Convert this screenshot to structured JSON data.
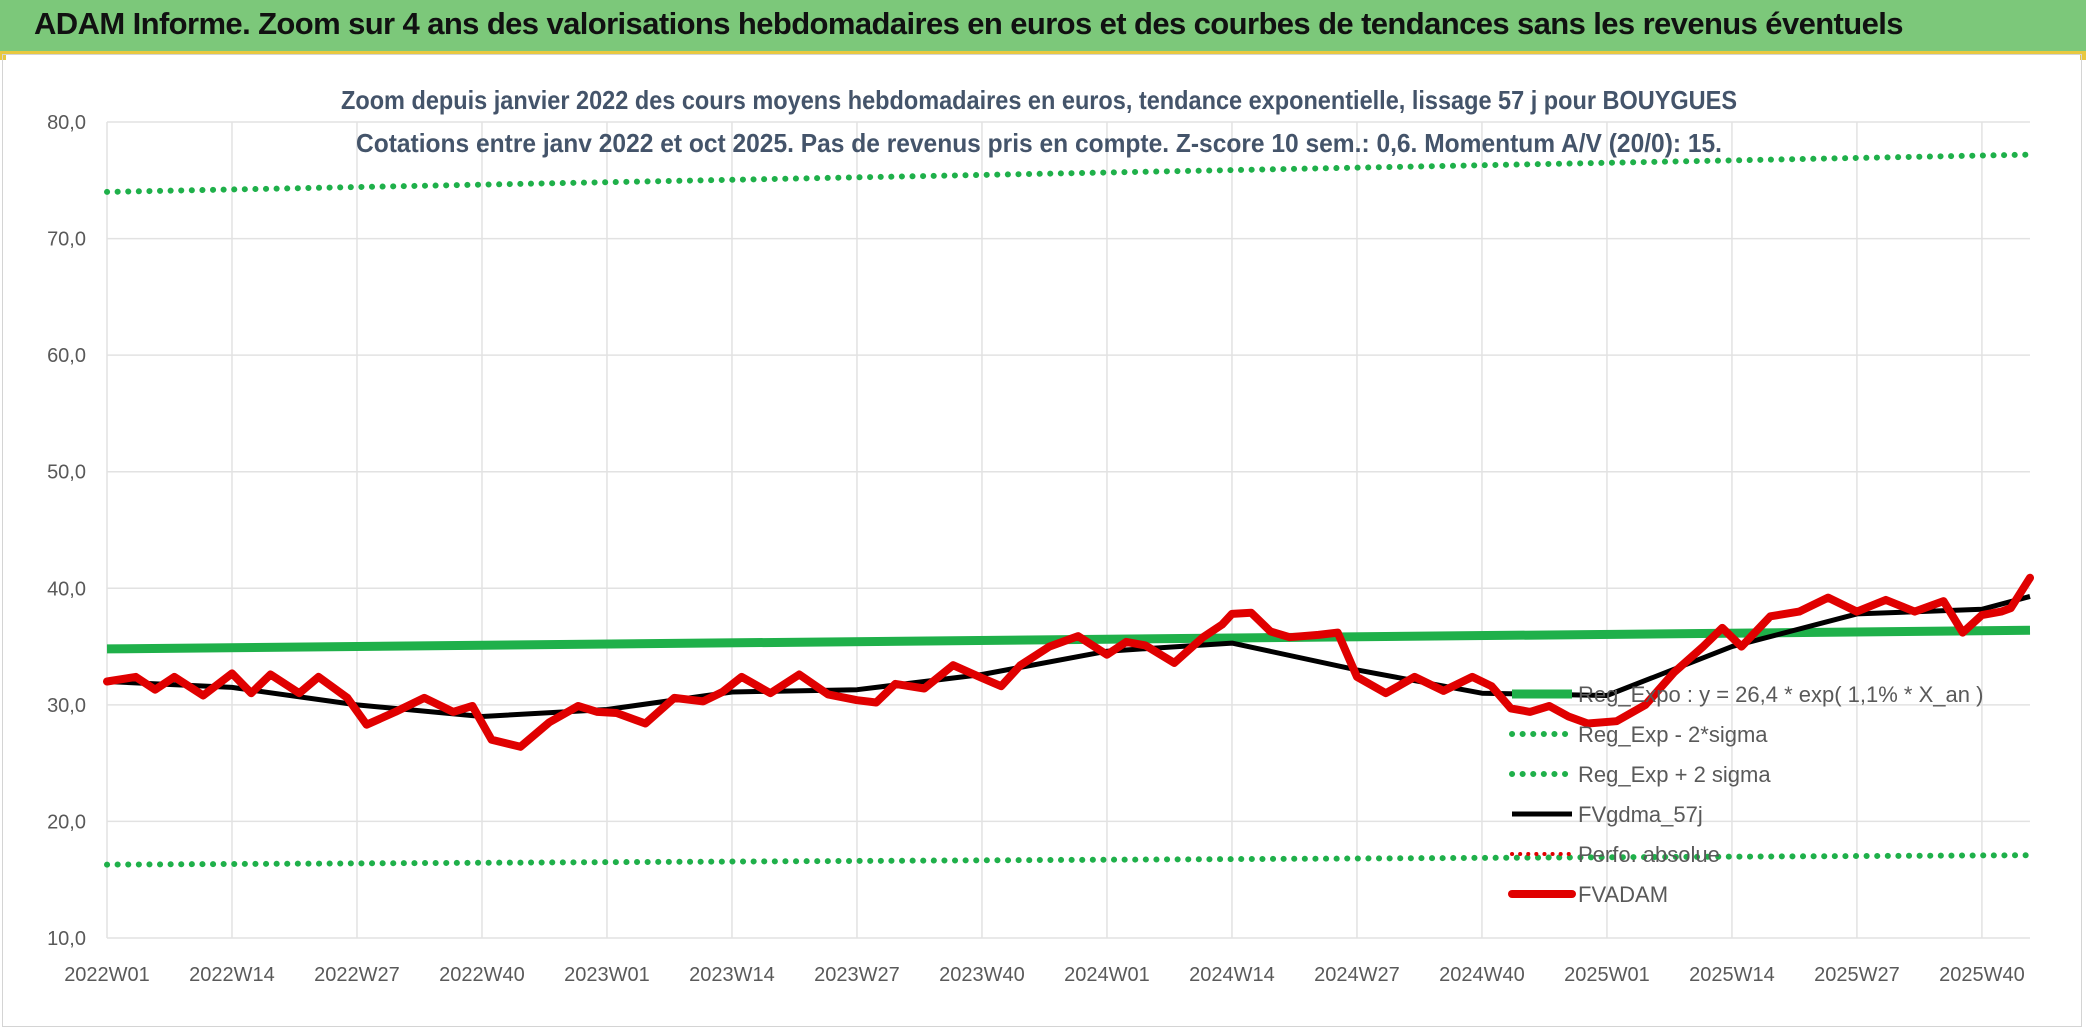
{
  "banner": {
    "title": "ADAM Informe. Zoom sur 4 ans des valorisations hebdomadaires en euros et des courbes de tendances sans les revenus éventuels"
  },
  "colors": {
    "banner_bg": "#7cc87a",
    "reg_exp": "#1fb04a",
    "sigma_bands": "#1fb04a",
    "fvgdma": "#000000",
    "perfo": "#e00000",
    "fvadam": "#e00000"
  },
  "chart_data": {
    "type": "line",
    "title": "Zoom depuis janvier 2022 des cours moyens hebdomadaires en euros, tendance exponentielle, lissage 57 j pour BOUYGUES",
    "subtitle": "Cotations entre janv 2022 et oct 2025. Pas de revenus pris en compte. Z-score 10 sem.: 0,6. Momentum A/V (20/0): 15.",
    "xlabel": "",
    "ylabel": "",
    "ylim": [
      10,
      80
    ],
    "yticks": [
      "10,0",
      "20,0",
      "30,0",
      "40,0",
      "50,0",
      "60,0",
      "70,0",
      "80,0"
    ],
    "x_tick_labels": [
      "2022W01",
      "2022W14",
      "2022W27",
      "2022W40",
      "2023W01",
      "2023W14",
      "2023W27",
      "2023W40",
      "2024W01",
      "2024W14",
      "2024W27",
      "2024W40",
      "2025W01",
      "2025W14",
      "2025W27",
      "2025W40"
    ],
    "grid": true,
    "legend_position": "bottom-right",
    "legend": [
      "Reg_Expo : y = 26,4 * exp( 1,1% *  X_an )",
      "Reg_Exp - 2*sigma",
      "Reg_Exp + 2 sigma",
      "FVgdma_57j",
      "Perfo. absolue",
      "FVADAM"
    ],
    "series": [
      {
        "name": "Reg_Expo : y = 26,4 * exp( 1,1% *  X_an )",
        "x_week_index": [
          0,
          200
        ],
        "values": [
          34.8,
          36.4
        ]
      },
      {
        "name": "Reg_Exp - 2*sigma",
        "x_week_index": [
          0,
          200
        ],
        "values": [
          16.3,
          17.1
        ]
      },
      {
        "name": "Reg_Exp + 2 sigma",
        "x_week_index": [
          0,
          200
        ],
        "values": [
          74.0,
          77.2
        ]
      },
      {
        "name": "FVgdma_57j",
        "x_week_index": [
          0,
          13,
          26,
          39,
          52,
          65,
          78,
          91,
          104,
          117,
          130,
          143,
          156,
          169,
          182,
          195,
          200
        ],
        "values": [
          32.0,
          31.5,
          30.0,
          29.0,
          29.6,
          31.1,
          31.3,
          32.6,
          34.6,
          35.3,
          33.0,
          31.0,
          30.8,
          35.0,
          37.8,
          38.2,
          39.3
        ]
      },
      {
        "name": "Perfo. absolue",
        "x_week_index": [],
        "values": []
      },
      {
        "name": "FVADAM",
        "x_week_index": [
          0,
          3,
          5,
          7,
          10,
          13,
          15,
          17,
          20,
          22,
          25,
          27,
          30,
          33,
          36,
          38,
          40,
          43,
          46,
          49,
          51,
          53,
          56,
          59,
          62,
          64,
          66,
          69,
          72,
          75,
          78,
          80,
          82,
          85,
          88,
          91,
          93,
          95,
          98,
          101,
          104,
          106,
          108,
          111,
          114,
          116,
          117,
          119,
          121,
          123,
          126,
          128,
          130,
          133,
          136,
          139,
          142,
          144,
          146,
          148,
          150,
          152,
          154,
          157,
          160,
          163,
          166,
          168,
          170,
          173,
          176,
          179,
          182,
          185,
          188,
          191,
          193,
          195,
          197,
          198,
          200
        ],
        "values": [
          32.0,
          32.4,
          31.3,
          32.4,
          30.8,
          32.7,
          31.0,
          32.6,
          31.0,
          32.4,
          30.6,
          28.3,
          29.4,
          30.6,
          29.4,
          29.9,
          27.0,
          26.4,
          28.5,
          29.9,
          29.4,
          29.3,
          28.4,
          30.6,
          30.3,
          31.1,
          32.4,
          31.0,
          32.6,
          30.9,
          30.4,
          30.2,
          31.8,
          31.4,
          33.4,
          32.3,
          31.6,
          33.4,
          35.0,
          35.9,
          34.3,
          35.4,
          35.1,
          33.6,
          35.8,
          36.9,
          37.8,
          37.9,
          36.3,
          35.8,
          36.0,
          36.2,
          32.4,
          31.0,
          32.4,
          31.2,
          32.4,
          31.6,
          29.7,
          29.4,
          29.9,
          29.0,
          28.4,
          28.6,
          30.0,
          32.8,
          35.0,
          36.6,
          35.0,
          37.6,
          38.0,
          39.2,
          38.0,
          39.0,
          38.0,
          38.9,
          36.2,
          37.7,
          38.0,
          38.3,
          40.9
        ]
      }
    ]
  }
}
